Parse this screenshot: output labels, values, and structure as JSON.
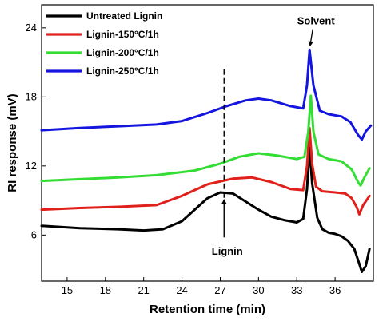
{
  "chart_data": {
    "type": "line",
    "xlabel": "Retention time (min)",
    "ylabel": "RI response (mV)",
    "xlim": [
      13,
      39
    ],
    "ylim": [
      2,
      26
    ],
    "x_ticks": [
      15,
      18,
      21,
      24,
      27,
      30,
      33,
      36
    ],
    "y_ticks": [
      6,
      12,
      18,
      24
    ],
    "grid": false,
    "legend_position": "top-left",
    "series": [
      {
        "name": "Untreated Lignin",
        "color": "#000000",
        "points": [
          [
            13,
            6.8
          ],
          [
            16,
            6.6
          ],
          [
            19,
            6.5
          ],
          [
            21,
            6.4
          ],
          [
            22.5,
            6.5
          ],
          [
            24,
            7.2
          ],
          [
            25,
            8.2
          ],
          [
            26,
            9.2
          ],
          [
            27,
            9.7
          ],
          [
            28,
            9.6
          ],
          [
            29,
            8.9
          ],
          [
            30,
            8.2
          ],
          [
            31,
            7.6
          ],
          [
            32,
            7.3
          ],
          [
            33,
            7.1
          ],
          [
            33.5,
            7.4
          ],
          [
            33.8,
            10
          ],
          [
            34,
            13.6
          ],
          [
            34.2,
            10.5
          ],
          [
            34.6,
            7.5
          ],
          [
            35,
            6.5
          ],
          [
            35.5,
            6.2
          ],
          [
            36,
            6.1
          ],
          [
            36.5,
            5.9
          ],
          [
            37,
            5.5
          ],
          [
            37.5,
            4.8
          ],
          [
            37.9,
            3.5
          ],
          [
            38.1,
            2.8
          ],
          [
            38.4,
            3.3
          ],
          [
            38.7,
            4.8
          ]
        ]
      },
      {
        "name": "Lignin-150°C/1h",
        "color": "#e0201a",
        "points": [
          [
            13,
            8.2
          ],
          [
            16,
            8.35
          ],
          [
            19,
            8.45
          ],
          [
            22,
            8.6
          ],
          [
            24,
            9.4
          ],
          [
            26,
            10.4
          ],
          [
            28,
            10.9
          ],
          [
            29.5,
            11.0
          ],
          [
            31,
            10.6
          ],
          [
            32.5,
            10.0
          ],
          [
            33.5,
            9.9
          ],
          [
            33.8,
            12
          ],
          [
            34,
            15.3
          ],
          [
            34.2,
            12.2
          ],
          [
            34.5,
            10.2
          ],
          [
            35,
            9.8
          ],
          [
            36,
            9.7
          ],
          [
            36.8,
            9.6
          ],
          [
            37.3,
            9.2
          ],
          [
            37.7,
            8.4
          ],
          [
            37.9,
            7.8
          ],
          [
            38.2,
            8.6
          ],
          [
            38.7,
            9.4
          ]
        ]
      },
      {
        "name": "Lignin-200°C/1h",
        "color": "#33dd33",
        "points": [
          [
            13,
            10.7
          ],
          [
            16,
            10.85
          ],
          [
            19,
            11.0
          ],
          [
            22,
            11.2
          ],
          [
            25,
            11.6
          ],
          [
            27,
            12.2
          ],
          [
            28.5,
            12.8
          ],
          [
            30,
            13.1
          ],
          [
            31.5,
            12.9
          ],
          [
            33,
            12.6
          ],
          [
            33.6,
            12.8
          ],
          [
            33.9,
            15
          ],
          [
            34.1,
            18.1
          ],
          [
            34.3,
            15
          ],
          [
            34.7,
            13.0
          ],
          [
            35.5,
            12.6
          ],
          [
            36.5,
            12.4
          ],
          [
            37.3,
            11.7
          ],
          [
            37.8,
            10.6
          ],
          [
            38,
            10.3
          ],
          [
            38.3,
            11
          ],
          [
            38.7,
            11.8
          ]
        ]
      },
      {
        "name": "Lignin-250°C/1h",
        "color": "#1515e0",
        "points": [
          [
            13,
            15.1
          ],
          [
            16,
            15.3
          ],
          [
            19,
            15.45
          ],
          [
            22,
            15.6
          ],
          [
            24,
            15.9
          ],
          [
            26,
            16.6
          ],
          [
            27.5,
            17.2
          ],
          [
            29,
            17.7
          ],
          [
            30,
            17.85
          ],
          [
            31,
            17.7
          ],
          [
            32.5,
            17.2
          ],
          [
            33.5,
            17.0
          ],
          [
            33.8,
            19
          ],
          [
            34,
            22.1
          ],
          [
            34.3,
            19
          ],
          [
            34.8,
            16.8
          ],
          [
            35.5,
            16.5
          ],
          [
            36.5,
            16.3
          ],
          [
            37.2,
            15.8
          ],
          [
            37.8,
            14.7
          ],
          [
            38.1,
            14.3
          ],
          [
            38.4,
            15.0
          ],
          [
            38.8,
            15.5
          ]
        ]
      }
    ],
    "annotations": [
      {
        "text": "Lignin",
        "x": 27.3,
        "y": 1,
        "marker": "dashed vertical line with upward arrow"
      },
      {
        "text": "Solvent",
        "x": 34.0,
        "y": 24.3,
        "marker": "downward arrow to solvent peak"
      }
    ]
  }
}
